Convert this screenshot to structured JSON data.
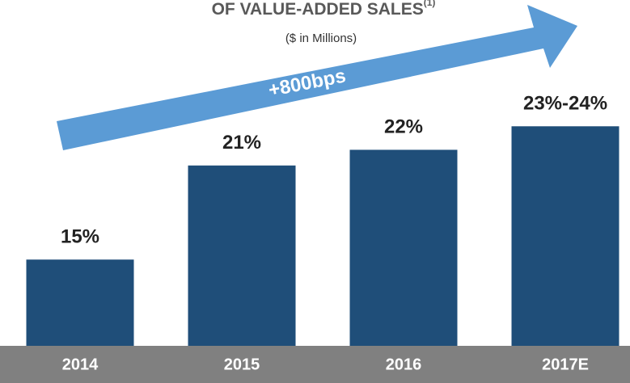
{
  "chart_data": {
    "type": "bar",
    "title": "OF VALUE-ADDED SALES",
    "title_superscript": "(1)",
    "subtitle": "($ in Millions)",
    "annotation": "+800bps",
    "categories": [
      "2014",
      "2015",
      "2016",
      "2017E"
    ],
    "values": [
      15,
      21,
      22,
      23.5
    ],
    "value_labels": [
      "15%",
      "21%",
      "22%",
      "23%-24%"
    ],
    "color": "#1f4e79",
    "ylim": [
      9.5,
      26.4
    ]
  }
}
